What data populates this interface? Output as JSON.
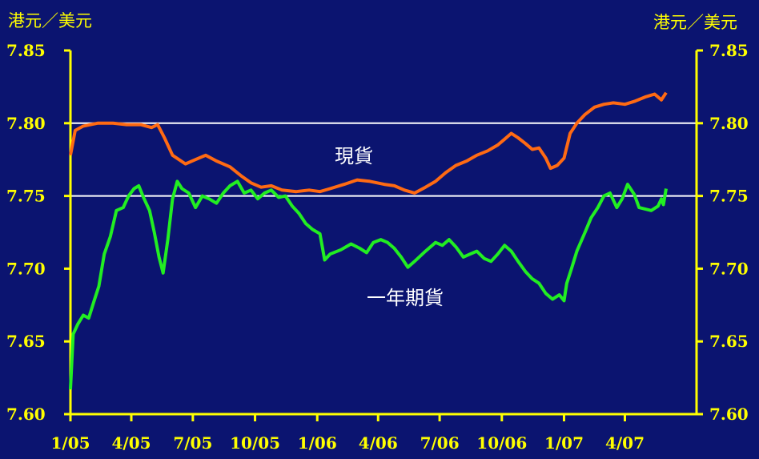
{
  "units": {
    "left": "港元／美元",
    "right": "港元／美元"
  },
  "colors": {
    "background": "#0b1470",
    "axis": "#ffff00",
    "reference_line": "#ffffff",
    "spot": "#ff6a13",
    "forward": "#22ee22"
  },
  "chart_data": {
    "type": "line",
    "title": "",
    "xlabel": "",
    "ylabel": "港元／美元",
    "ylim": [
      7.6,
      7.85
    ],
    "yticks": [
      "7.60",
      "7.65",
      "7.70",
      "7.75",
      "7.80",
      "7.85"
    ],
    "xlim": [
      "2005-01",
      "2007-06"
    ],
    "xticks": [
      "1/05",
      "4/05",
      "7/05",
      "10/05",
      "1/06",
      "4/06",
      "7/06",
      "10/06",
      "1/07",
      "4/07"
    ],
    "reference_lines": [
      7.75,
      7.8
    ],
    "grid": false,
    "series": [
      {
        "name": "現貨",
        "points": [
          [
            "2005-01-01",
            7.778
          ],
          [
            "2005-01-08",
            7.795
          ],
          [
            "2005-01-20",
            7.798
          ],
          [
            "2005-02-10",
            7.8
          ],
          [
            "2005-03-05",
            7.8
          ],
          [
            "2005-03-25",
            7.799
          ],
          [
            "2005-04-15",
            7.799
          ],
          [
            "2005-05-01",
            7.797
          ],
          [
            "2005-05-10",
            7.799
          ],
          [
            "2005-05-20",
            7.79
          ],
          [
            "2005-06-01",
            7.778
          ],
          [
            "2005-06-20",
            7.772
          ],
          [
            "2005-07-05",
            7.775
          ],
          [
            "2005-07-20",
            7.778
          ],
          [
            "2005-08-05",
            7.774
          ],
          [
            "2005-08-25",
            7.77
          ],
          [
            "2005-09-10",
            7.764
          ],
          [
            "2005-09-25",
            7.759
          ],
          [
            "2005-10-10",
            7.756
          ],
          [
            "2005-10-25",
            7.757
          ],
          [
            "2005-11-10",
            7.754
          ],
          [
            "2005-12-01",
            7.753
          ],
          [
            "2005-12-20",
            7.754
          ],
          [
            "2006-01-05",
            7.753
          ],
          [
            "2006-01-20",
            7.755
          ],
          [
            "2006-02-10",
            7.758
          ],
          [
            "2006-03-01",
            7.761
          ],
          [
            "2006-03-20",
            7.76
          ],
          [
            "2006-04-10",
            7.758
          ],
          [
            "2006-04-25",
            7.757
          ],
          [
            "2006-05-10",
            7.754
          ],
          [
            "2006-05-25",
            7.752
          ],
          [
            "2006-06-10",
            7.756
          ],
          [
            "2006-06-25",
            7.76
          ],
          [
            "2006-07-10",
            7.766
          ],
          [
            "2006-07-25",
            7.771
          ],
          [
            "2006-08-10",
            7.774
          ],
          [
            "2006-08-25",
            7.778
          ],
          [
            "2006-09-10",
            7.781
          ],
          [
            "2006-09-25",
            7.785
          ],
          [
            "2006-10-05",
            7.789
          ],
          [
            "2006-10-15",
            7.793
          ],
          [
            "2006-10-25",
            7.79
          ],
          [
            "2006-11-05",
            7.786
          ],
          [
            "2006-11-15",
            7.782
          ],
          [
            "2006-11-25",
            7.783
          ],
          [
            "2006-12-05",
            7.776
          ],
          [
            "2006-12-12",
            7.769
          ],
          [
            "2006-12-22",
            7.771
          ],
          [
            "2007-01-01",
            7.776
          ],
          [
            "2007-01-10",
            7.793
          ],
          [
            "2007-01-20",
            7.8
          ],
          [
            "2007-02-01",
            7.806
          ],
          [
            "2007-02-15",
            7.811
          ],
          [
            "2007-03-01",
            7.813
          ],
          [
            "2007-03-15",
            7.814
          ],
          [
            "2007-04-01",
            7.813
          ],
          [
            "2007-04-15",
            7.815
          ],
          [
            "2007-05-01",
            7.818
          ],
          [
            "2007-05-15",
            7.82
          ],
          [
            "2007-05-25",
            7.816
          ],
          [
            "2007-06-01",
            7.821
          ]
        ]
      },
      {
        "name": "一年期貨",
        "points": [
          [
            "2005-01-01",
            7.617
          ],
          [
            "2005-01-05",
            7.655
          ],
          [
            "2005-01-12",
            7.662
          ],
          [
            "2005-01-20",
            7.668
          ],
          [
            "2005-01-28",
            7.666
          ],
          [
            "2005-02-05",
            7.678
          ],
          [
            "2005-02-12",
            7.688
          ],
          [
            "2005-02-20",
            7.71
          ],
          [
            "2005-03-01",
            7.722
          ],
          [
            "2005-03-10",
            7.74
          ],
          [
            "2005-03-20",
            7.742
          ],
          [
            "2005-03-28",
            7.75
          ],
          [
            "2005-04-05",
            7.755
          ],
          [
            "2005-04-12",
            7.757
          ],
          [
            "2005-04-20",
            7.748
          ],
          [
            "2005-04-28",
            7.74
          ],
          [
            "2005-05-05",
            7.725
          ],
          [
            "2005-05-12",
            7.708
          ],
          [
            "2005-05-18",
            7.697
          ],
          [
            "2005-05-25",
            7.72
          ],
          [
            "2005-06-01",
            7.748
          ],
          [
            "2005-06-08",
            7.76
          ],
          [
            "2005-06-15",
            7.755
          ],
          [
            "2005-06-25",
            7.752
          ],
          [
            "2005-07-05",
            7.742
          ],
          [
            "2005-07-15",
            7.75
          ],
          [
            "2005-07-25",
            7.748
          ],
          [
            "2005-08-05",
            7.745
          ],
          [
            "2005-08-15",
            7.752
          ],
          [
            "2005-08-25",
            7.757
          ],
          [
            "2005-09-05",
            7.76
          ],
          [
            "2005-09-15",
            7.752
          ],
          [
            "2005-09-25",
            7.754
          ],
          [
            "2005-10-05",
            7.748
          ],
          [
            "2005-10-15",
            7.752
          ],
          [
            "2005-10-25",
            7.754
          ],
          [
            "2005-11-05",
            7.749
          ],
          [
            "2005-11-15",
            7.75
          ],
          [
            "2005-11-25",
            7.743
          ],
          [
            "2005-12-05",
            7.738
          ],
          [
            "2005-12-15",
            7.731
          ],
          [
            "2005-12-25",
            7.727
          ],
          [
            "2006-01-05",
            7.724
          ],
          [
            "2006-01-12",
            7.706
          ],
          [
            "2006-01-20",
            7.71
          ],
          [
            "2006-02-05",
            7.713
          ],
          [
            "2006-02-20",
            7.717
          ],
          [
            "2006-03-05",
            7.714
          ],
          [
            "2006-03-15",
            7.711
          ],
          [
            "2006-03-25",
            7.718
          ],
          [
            "2006-04-05",
            7.72
          ],
          [
            "2006-04-15",
            7.718
          ],
          [
            "2006-04-25",
            7.714
          ],
          [
            "2006-05-05",
            7.708
          ],
          [
            "2006-05-15",
            7.701
          ],
          [
            "2006-05-25",
            7.705
          ],
          [
            "2006-06-10",
            7.712
          ],
          [
            "2006-06-25",
            7.718
          ],
          [
            "2006-07-05",
            7.716
          ],
          [
            "2006-07-15",
            7.72
          ],
          [
            "2006-07-25",
            7.715
          ],
          [
            "2006-08-05",
            7.708
          ],
          [
            "2006-08-15",
            7.71
          ],
          [
            "2006-08-25",
            7.712
          ],
          [
            "2006-09-05",
            7.707
          ],
          [
            "2006-09-15",
            7.705
          ],
          [
            "2006-09-25",
            7.71
          ],
          [
            "2006-10-05",
            7.716
          ],
          [
            "2006-10-15",
            7.712
          ],
          [
            "2006-10-25",
            7.705
          ],
          [
            "2006-11-05",
            7.698
          ],
          [
            "2006-11-15",
            7.693
          ],
          [
            "2006-11-25",
            7.69
          ],
          [
            "2006-12-05",
            7.683
          ],
          [
            "2006-12-15",
            7.679
          ],
          [
            "2006-12-25",
            7.682
          ],
          [
            "2007-01-01",
            7.678
          ],
          [
            "2007-01-05",
            7.69
          ],
          [
            "2007-01-12",
            7.7
          ],
          [
            "2007-01-20",
            7.712
          ],
          [
            "2007-02-01",
            7.725
          ],
          [
            "2007-02-10",
            7.735
          ],
          [
            "2007-02-20",
            7.742
          ],
          [
            "2007-03-01",
            7.75
          ],
          [
            "2007-03-10",
            7.752
          ],
          [
            "2007-03-20",
            7.742
          ],
          [
            "2007-03-28",
            7.748
          ],
          [
            "2007-04-05",
            7.758
          ],
          [
            "2007-04-15",
            7.751
          ],
          [
            "2007-04-22",
            7.742
          ],
          [
            "2007-05-01",
            7.741
          ],
          [
            "2007-05-10",
            7.74
          ],
          [
            "2007-05-20",
            7.743
          ],
          [
            "2007-05-25",
            7.748
          ],
          [
            "2007-05-28",
            7.744
          ],
          [
            "2007-06-01",
            7.755
          ]
        ]
      }
    ]
  }
}
